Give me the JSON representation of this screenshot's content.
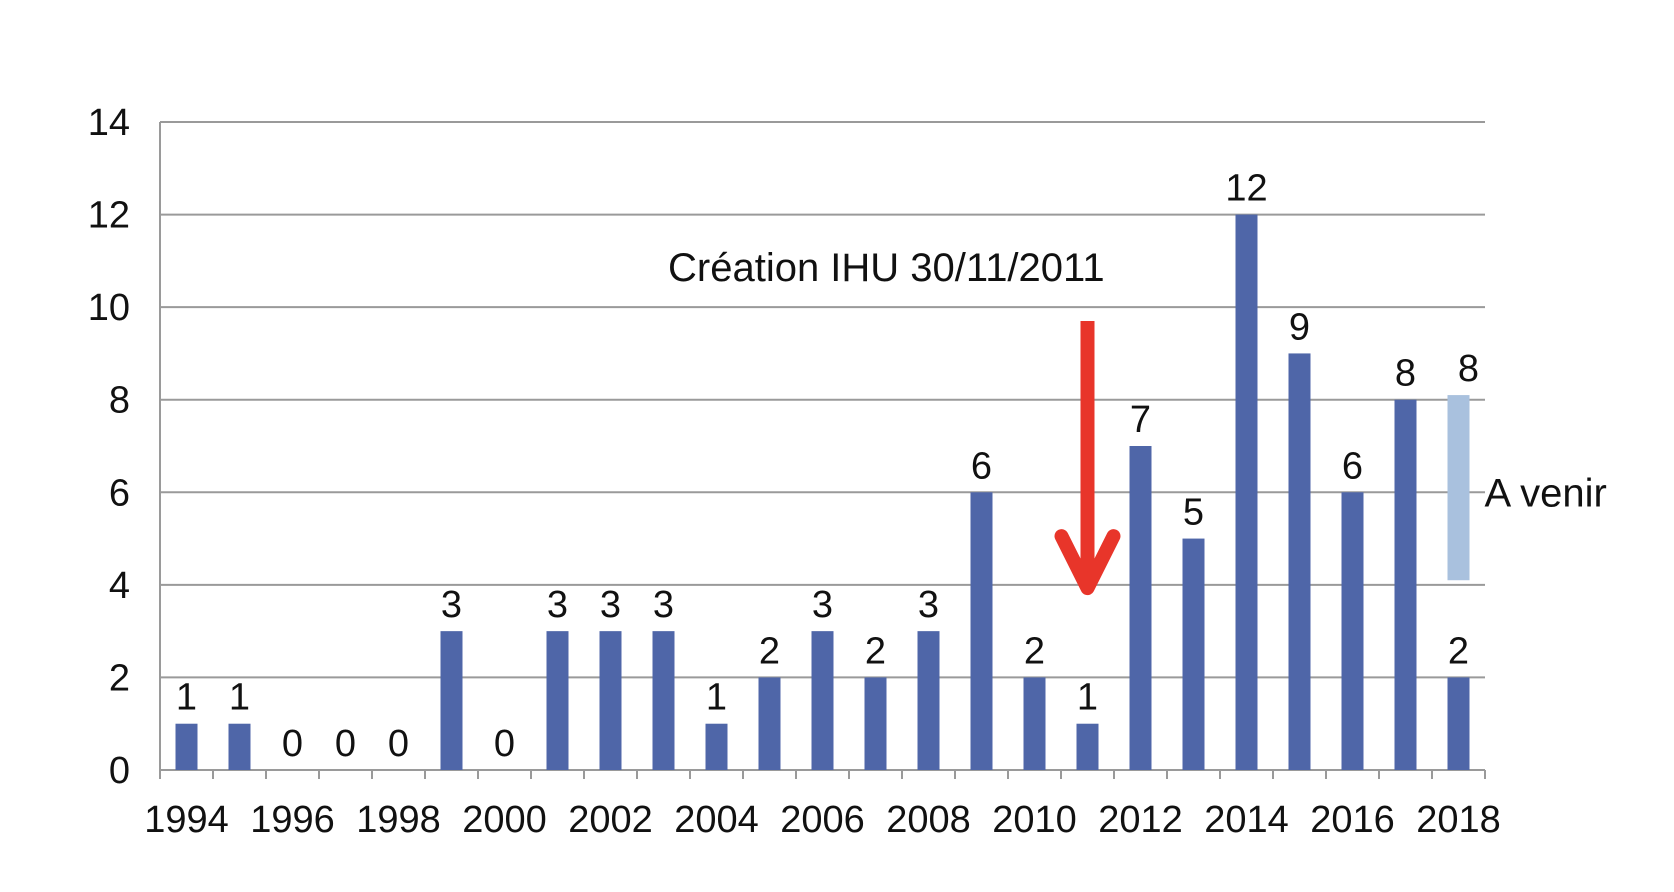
{
  "chart_data": {
    "type": "bar",
    "title": "",
    "xlabel": "",
    "ylabel": "",
    "ylim": [
      0,
      14
    ],
    "yticks": [
      0,
      2,
      4,
      6,
      8,
      10,
      12,
      14
    ],
    "grid": true,
    "categories": [
      "1994",
      "1995",
      "1996",
      "1997",
      "1998",
      "1999",
      "2000",
      "2001",
      "2002",
      "2003",
      "2004",
      "2005",
      "2006",
      "2007",
      "2008",
      "2009",
      "2010",
      "2011",
      "2012",
      "2013",
      "2014",
      "2015",
      "2016",
      "2017",
      "2018"
    ],
    "x_tick_labels": [
      "1994",
      "1996",
      "1998",
      "2000",
      "2002",
      "2004",
      "2006",
      "2008",
      "2010",
      "2012",
      "2014",
      "2016",
      "2018"
    ],
    "series": [
      {
        "values": [
          1,
          1,
          0,
          0,
          0,
          3,
          0,
          3,
          3,
          3,
          1,
          2,
          3,
          2,
          3,
          6,
          2,
          1,
          7,
          5,
          12,
          9,
          6,
          8,
          2
        ],
        "color": "#4f66a8",
        "labels": [
          "1",
          "1",
          "0",
          "0",
          "0",
          "3",
          "0",
          "3",
          "3",
          "3",
          "1",
          "2",
          "3",
          "2",
          "3",
          "6",
          "2",
          "1",
          "7",
          "5",
          "12",
          "9",
          "6",
          "8",
          "2"
        ]
      },
      {
        "category": "2018",
        "range": [
          4.1,
          8.1
        ],
        "color": "#a9c1de",
        "label": "8"
      }
    ],
    "annotations": [
      {
        "text": "Création IHU 30/11/2011",
        "color": "#111111"
      },
      {
        "text": "A venir",
        "color": "#111111"
      }
    ],
    "arrow": {
      "category": "2011",
      "from_value": 9.7,
      "to_value": 3.8,
      "color": "#e8352a"
    },
    "colors": {
      "grid": "#9a9a9a",
      "axis": "#9a9a9a"
    }
  }
}
